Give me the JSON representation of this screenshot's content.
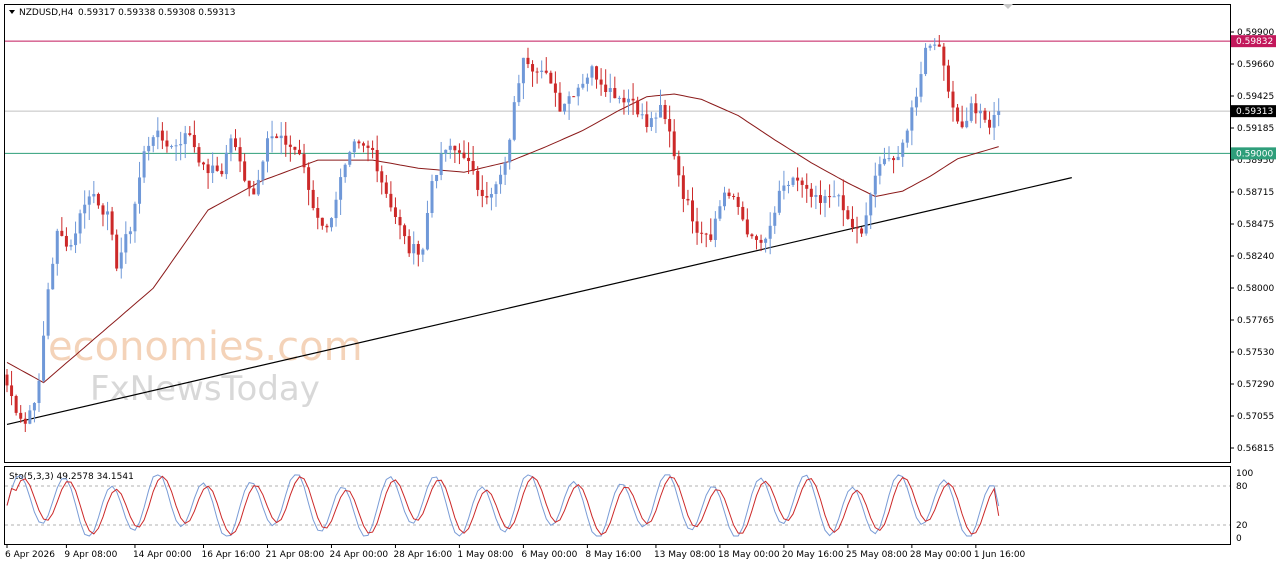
{
  "chart_data": {
    "type": "candlestick",
    "symbol_header": "NZDUSD,H4",
    "ohlc_header": "0.59317 0.59338 0.59308 0.59313",
    "price_axis_ticks": [
      "0.59900",
      "0.59660",
      "0.59425",
      "0.59185",
      "0.58950",
      "0.58715",
      "0.58475",
      "0.58240",
      "0.58000",
      "0.57765",
      "0.57530",
      "0.57290",
      "0.57055",
      "0.56815"
    ],
    "ylim": [
      0.56815,
      0.599
    ],
    "resistance_line": {
      "value": 0.59832,
      "label": "0.59832",
      "color": "#c2185b"
    },
    "support_line": {
      "value": 0.59,
      "label": "0.59000",
      "color": "#2e9e7a"
    },
    "current_price": {
      "value": 0.59313,
      "label": "0.59313"
    },
    "trendline": {
      "from": {
        "index": 0,
        "value": 0.5699
      },
      "to": {
        "index": 233,
        "value": 0.5882
      }
    },
    "time_labels": [
      {
        "index": 0,
        "label": "6 Apr 2026"
      },
      {
        "index": 13,
        "label": "9 Apr 08:00"
      },
      {
        "index": 28,
        "label": "14 Apr 00:00"
      },
      {
        "index": 43,
        "label": "16 Apr 16:00"
      },
      {
        "index": 57,
        "label": "21 Apr 08:00"
      },
      {
        "index": 71,
        "label": "24 Apr 00:00"
      },
      {
        "index": 85,
        "label": "28 Apr 16:00"
      },
      {
        "index": 99,
        "label": "1 May 08:00"
      },
      {
        "index": 113,
        "label": "6 May 00:00"
      },
      {
        "index": 127,
        "label": "8 May 16:00"
      },
      {
        "index": 142,
        "label": "13 May 08:00"
      },
      {
        "index": 156,
        "label": "18 May 00:00"
      },
      {
        "index": 170,
        "label": "20 May 16:00"
      },
      {
        "index": 184,
        "label": "25 May 08:00"
      },
      {
        "index": 198,
        "label": "28 May 00:00"
      },
      {
        "index": 212,
        "label": "1 Jun 16:00"
      }
    ],
    "close_keypoints": [
      [
        0,
        0.5728
      ],
      [
        2,
        0.5711
      ],
      [
        4,
        0.57
      ],
      [
        7,
        0.5728
      ],
      [
        9,
        0.58
      ],
      [
        11,
        0.584
      ],
      [
        14,
        0.5832
      ],
      [
        17,
        0.5865
      ],
      [
        19,
        0.587
      ],
      [
        22,
        0.5853
      ],
      [
        24,
        0.5818
      ],
      [
        27,
        0.5845
      ],
      [
        30,
        0.59
      ],
      [
        32,
        0.5915
      ],
      [
        36,
        0.5905
      ],
      [
        40,
        0.5915
      ],
      [
        43,
        0.5888
      ],
      [
        47,
        0.5887
      ],
      [
        49,
        0.5912
      ],
      [
        52,
        0.5883
      ],
      [
        54,
        0.587
      ],
      [
        57,
        0.5912
      ],
      [
        61,
        0.5908
      ],
      [
        64,
        0.59
      ],
      [
        67,
        0.586
      ],
      [
        70,
        0.5843
      ],
      [
        73,
        0.588
      ],
      [
        76,
        0.5905
      ],
      [
        80,
        0.5902
      ],
      [
        82,
        0.588
      ],
      [
        86,
        0.5845
      ],
      [
        88,
        0.5828
      ],
      [
        91,
        0.583
      ],
      [
        93,
        0.588
      ],
      [
        96,
        0.5903
      ],
      [
        100,
        0.59
      ],
      [
        103,
        0.5875
      ],
      [
        106,
        0.5868
      ],
      [
        109,
        0.589
      ],
      [
        111,
        0.5935
      ],
      [
        113,
        0.5975
      ],
      [
        116,
        0.596
      ],
      [
        119,
        0.5955
      ],
      [
        121,
        0.5935
      ],
      [
        125,
        0.595
      ],
      [
        128,
        0.5962
      ],
      [
        131,
        0.595
      ],
      [
        134,
        0.5942
      ],
      [
        137,
        0.594
      ],
      [
        140,
        0.592
      ],
      [
        143,
        0.5932
      ],
      [
        145,
        0.5915
      ],
      [
        148,
        0.587
      ],
      [
        151,
        0.5845
      ],
      [
        154,
        0.584
      ],
      [
        157,
        0.5872
      ],
      [
        160,
        0.586
      ],
      [
        163,
        0.5835
      ],
      [
        166,
        0.5833
      ],
      [
        169,
        0.5868
      ],
      [
        172,
        0.5882
      ],
      [
        175,
        0.587
      ],
      [
        178,
        0.5862
      ],
      [
        181,
        0.5872
      ],
      [
        184,
        0.585
      ],
      [
        187,
        0.5838
      ],
      [
        189,
        0.587
      ],
      [
        192,
        0.59
      ],
      [
        195,
        0.5893
      ],
      [
        197,
        0.592
      ],
      [
        199,
        0.5945
      ],
      [
        201,
        0.5978
      ],
      [
        203,
        0.5985
      ],
      [
        205,
        0.5965
      ],
      [
        207,
        0.5935
      ],
      [
        209,
        0.5918
      ],
      [
        211,
        0.5935
      ],
      [
        213,
        0.5928
      ],
      [
        215,
        0.592
      ],
      [
        217,
        0.5931
      ]
    ],
    "ma_keypoints": [
      [
        0,
        0.5745
      ],
      [
        8,
        0.573
      ],
      [
        20,
        0.5765
      ],
      [
        32,
        0.58
      ],
      [
        44,
        0.5858
      ],
      [
        56,
        0.588
      ],
      [
        68,
        0.5895
      ],
      [
        80,
        0.5895
      ],
      [
        90,
        0.5889
      ],
      [
        100,
        0.5886
      ],
      [
        110,
        0.5894
      ],
      [
        118,
        0.5905
      ],
      [
        126,
        0.5917
      ],
      [
        134,
        0.5932
      ],
      [
        140,
        0.5942
      ],
      [
        146,
        0.5944
      ],
      [
        152,
        0.594
      ],
      [
        160,
        0.5928
      ],
      [
        168,
        0.591
      ],
      [
        176,
        0.5893
      ],
      [
        184,
        0.5878
      ],
      [
        190,
        0.5868
      ],
      [
        196,
        0.5872
      ],
      [
        202,
        0.5883
      ],
      [
        208,
        0.5896
      ],
      [
        217,
        0.5905
      ]
    ],
    "oscillator": {
      "label": "Sto(5,3,3) 49.2578 34.1541",
      "main_value": 49.2578,
      "signal_value": 34.1541,
      "ticks": [
        "100",
        "80",
        "20",
        "0"
      ],
      "ylim": [
        0,
        100
      ],
      "levels": [
        80,
        20
      ],
      "main_color": "#7a9cd6",
      "signal_color": "#cc2929"
    },
    "bull_color": "#6f98d8",
    "bear_color": "#cc2929",
    "ma_color": "#8b1a1a"
  },
  "watermark": {
    "line1": "economies.com",
    "line2": "FxNewsToday"
  }
}
